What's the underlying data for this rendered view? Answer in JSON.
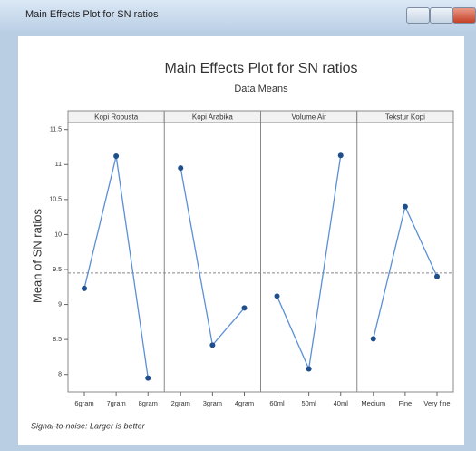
{
  "window": {
    "title": "Main Effects Plot for SN ratios"
  },
  "chart_data": {
    "type": "line",
    "title": "Main Effects Plot for SN ratios",
    "subtitle": "Data Means",
    "y_label": "Mean of SN ratios",
    "footnote": "Signal-to-noise: Larger is better",
    "ylim": [
      7.75,
      11.6
    ],
    "yticks": [
      8.0,
      8.5,
      9.0,
      9.5,
      10.0,
      10.5,
      11.0,
      11.5
    ],
    "mean": 9.45,
    "color": "#5b8fd6",
    "marker_color": "#1f4e8c",
    "panels": [
      {
        "title": "Kopi Robusta",
        "categories": [
          "6gram",
          "7gram",
          "8gram"
        ],
        "values": [
          9.23,
          11.12,
          7.95
        ]
      },
      {
        "title": "Kopi Arabika",
        "categories": [
          "2gram",
          "3gram",
          "4gram"
        ],
        "values": [
          10.95,
          8.42,
          8.95
        ]
      },
      {
        "title": "Volume Air",
        "categories": [
          "60ml",
          "50ml",
          "40ml"
        ],
        "values": [
          9.12,
          8.08,
          11.13
        ]
      },
      {
        "title": "Tekstur Kopi",
        "categories": [
          "Medium",
          "Fine",
          "Very fine"
        ],
        "values": [
          8.51,
          10.4,
          9.4
        ]
      }
    ]
  }
}
